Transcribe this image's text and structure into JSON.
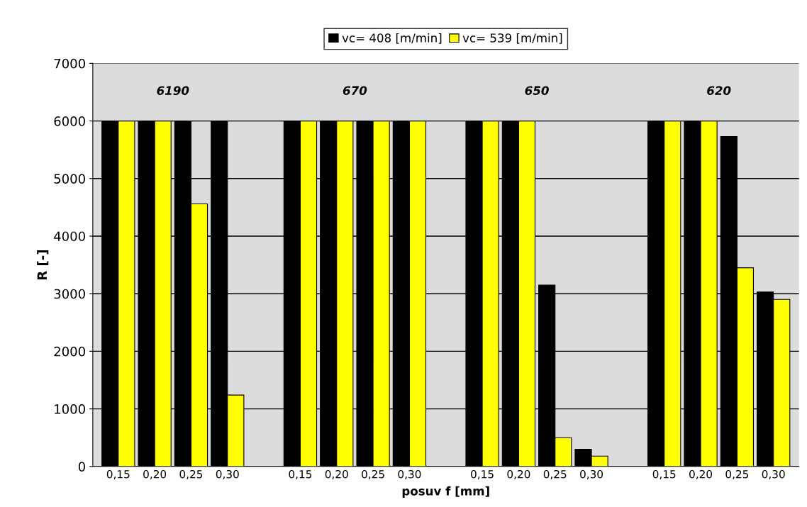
{
  "chart_data": {
    "type": "bar",
    "xlabel": "posuv f [mm]",
    "ylabel": "R [-]",
    "categories": [
      "0,15",
      "0,20",
      "0,25",
      "0,30",
      null,
      "0,15",
      "0,20",
      "0,25",
      "0,30",
      null,
      "0,15",
      "0,20",
      "0,25",
      "0,30",
      null,
      "0,15",
      "0,20",
      "0,25",
      "0,30"
    ],
    "series": [
      {
        "name": "vc= 408 [m/min]",
        "color": "#000000",
        "values": [
          6000,
          6000,
          6000,
          6000,
          null,
          6000,
          6000,
          6000,
          6000,
          null,
          6000,
          6000,
          3150,
          300,
          null,
          6000,
          6000,
          5730,
          3030
        ]
      },
      {
        "name": "vc= 539 [m/min]",
        "color": "#ffff00",
        "values": [
          6000,
          6000,
          4560,
          1240,
          null,
          6000,
          6000,
          6000,
          6000,
          null,
          6000,
          6000,
          500,
          180,
          null,
          6000,
          6000,
          3450,
          2900
        ]
      }
    ],
    "annotations": [
      "6190",
      "670",
      "650",
      "620"
    ],
    "ylim": [
      0,
      7000
    ],
    "yticks": [
      0,
      1000,
      2000,
      3000,
      4000,
      5000,
      6000,
      7000
    ],
    "grid": "y",
    "legend": "top"
  }
}
